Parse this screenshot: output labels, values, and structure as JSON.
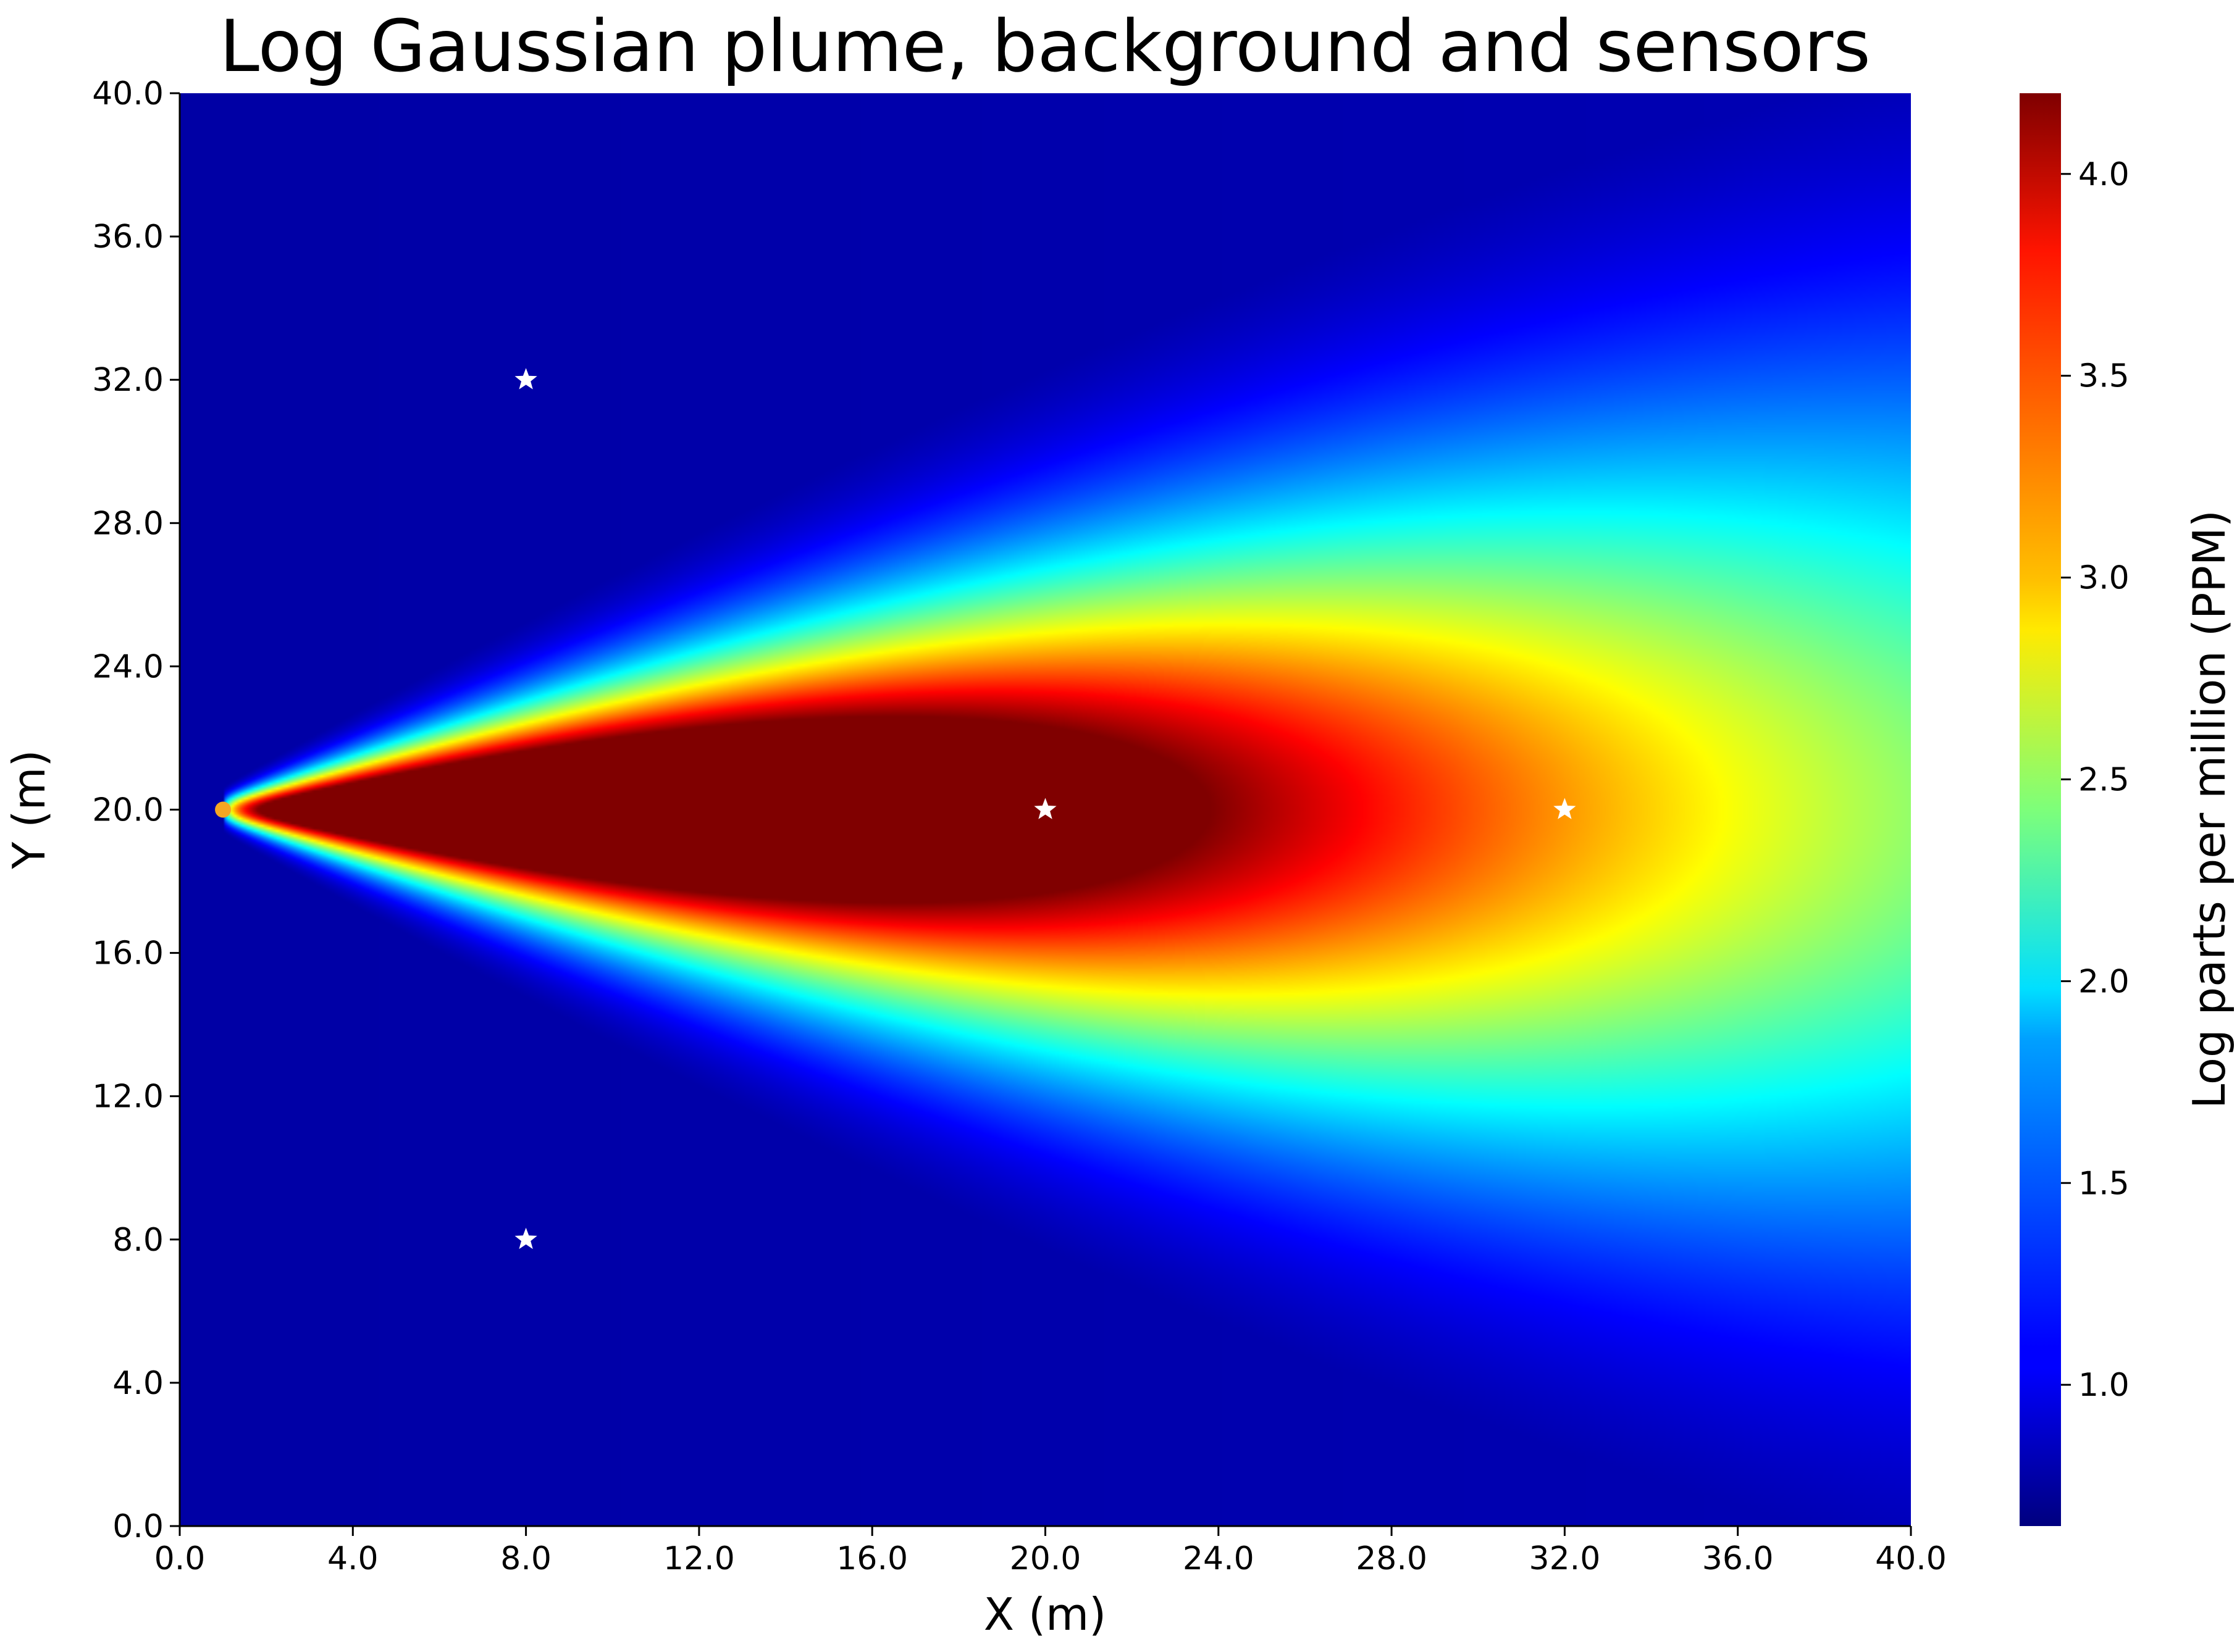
{
  "chart_data": {
    "type": "heatmap",
    "title": "Log Gaussian plume, background and sensors",
    "xlabel": "X (m)",
    "ylabel": "Y (m)",
    "xlim": [
      0,
      40
    ],
    "ylim": [
      0,
      40
    ],
    "x_ticks": [
      "0.0",
      "4.0",
      "8.0",
      "12.0",
      "16.0",
      "20.0",
      "24.0",
      "28.0",
      "32.0",
      "36.0",
      "40.0"
    ],
    "y_ticks": [
      "0.0",
      "4.0",
      "8.0",
      "12.0",
      "16.0",
      "20.0",
      "24.0",
      "28.0",
      "32.0",
      "36.0",
      "40.0"
    ],
    "colormap": "jet",
    "colorbar": {
      "label": "Log parts per million (PPM)",
      "range": [
        0.65,
        4.2
      ],
      "ticks": [
        "1.0",
        "1.5",
        "2.0",
        "2.5",
        "3.0",
        "3.5",
        "4.0"
      ]
    },
    "source": {
      "x": 1.0,
      "y": 20.0,
      "color": "#f5a623"
    },
    "sensors": [
      {
        "x": 8.0,
        "y": 32.0
      },
      {
        "x": 8.0,
        "y": 8.0
      },
      {
        "x": 20.0,
        "y": 20.0
      },
      {
        "x": 32.0,
        "y": 20.0
      }
    ],
    "grid": false,
    "legend": "none"
  }
}
